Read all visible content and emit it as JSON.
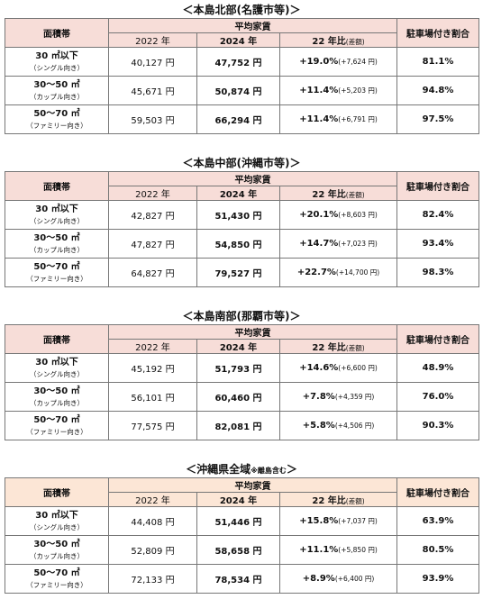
{
  "header": {
    "area": "面積帯",
    "avg_rent": "平均家賃",
    "y2022": "2022 年",
    "y2024": "2024 年",
    "ratio": "22 年比",
    "ratio_note": "(差額)",
    "parking": "駐車場付き割合"
  },
  "sections": [
    {
      "title": "＜本島北部(名護市等)＞",
      "rows": [
        [
          "30 ㎡以下",
          "（シングル向き）",
          "40,127 円",
          "47,752 円",
          "+19.0%",
          "(+7,624 円)",
          "81.1%"
        ],
        [
          "30～50 ㎡",
          "（カップル向き）",
          "45,671 円",
          "50,874 円",
          "+11.4%",
          "(+5,203 円)",
          "94.8%"
        ],
        [
          "50～70 ㎡",
          "（ファミリー向き）",
          "59,503 円",
          "66,294 円",
          "+11.4%",
          "(+6,791 円)",
          "97.5%"
        ]
      ]
    },
    {
      "title": "＜本島中部(沖縄市等)＞",
      "rows": [
        [
          "30 ㎡以下",
          "（シングル向き）",
          "42,827 円",
          "51,430 円",
          "+20.1%",
          "(+8,603 円)",
          "82.4%"
        ],
        [
          "30～50 ㎡",
          "（カップル向き）",
          "47,827 円",
          "54,850 円",
          "+14.7%",
          "(+7,023 円)",
          "93.4%"
        ],
        [
          "50～70 ㎡",
          "（ファミリー向き）",
          "64,827 円",
          "79,527 円",
          "+22.7%",
          "(+14,700 円)",
          "98.3%"
        ]
      ]
    },
    {
      "title": "＜本島南部(那覇市等)＞",
      "rows": [
        [
          "30 ㎡以下",
          "（シングル向き）",
          "45,192 円",
          "51,793 円",
          "+14.6%",
          "(+6,600 円)",
          "48.9%"
        ],
        [
          "30～50 ㎡",
          "（カップル向き）",
          "56,101 円",
          "60,460 円",
          "+7.8%",
          "(+4,359 円)",
          "76.0%"
        ],
        [
          "50～70 ㎡",
          "（ファミリー向き）",
          "77,575 円",
          "82,081 円",
          "+5.8%",
          "(+4,506 円)",
          "90.3%"
        ]
      ]
    },
    {
      "title": "＜沖縄県全域",
      "title_note": "※離島含む",
      "title_end": "＞",
      "rows": [
        [
          "30 ㎡以下",
          "（シングル向き）",
          "44,408 円",
          "51,446 円",
          "+15.8%",
          "(+7,037 円)",
          "63.9%"
        ],
        [
          "30～50 ㎡",
          "（カップル向き）",
          "52,809 円",
          "58,658 円",
          "+11.1%",
          "(+5,850 円)",
          "80.5%"
        ],
        [
          "50～70 ㎡",
          "（ファミリー向き）",
          "72,133 円",
          "78,534 円",
          "+8.9%",
          "(+6,400 円)",
          "93.9%"
        ]
      ]
    }
  ]
}
